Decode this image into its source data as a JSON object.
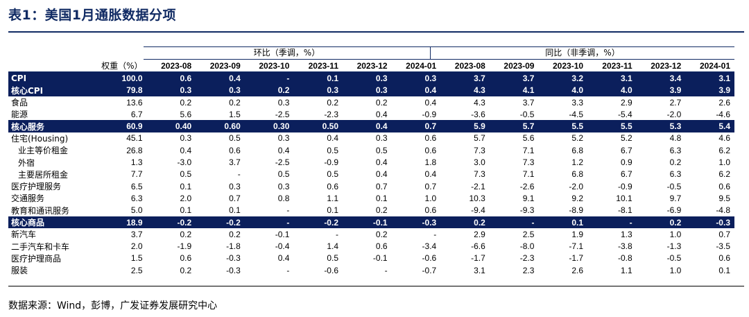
{
  "title": "表1：美国1月通胀数据分项",
  "header": {
    "weight_label": "权重（%）",
    "mom_group": "环比（季调，%）",
    "yoy_group": "同比（非季调，%）",
    "months": [
      "2023-08",
      "2023-09",
      "2023-10",
      "2023-11",
      "2023-12",
      "2024-01",
      "2023-08",
      "2023-09",
      "2023-10",
      "2023-11",
      "2023-12",
      "2024-01"
    ]
  },
  "rows": [
    {
      "label": "CPI",
      "weight": "100.0",
      "highlight": true,
      "mom": [
        "0.6",
        "0.4",
        "-",
        "0.1",
        "0.3",
        "0.3"
      ],
      "yoy": [
        "3.7",
        "3.7",
        "3.2",
        "3.1",
        "3.4",
        "3.1"
      ]
    },
    {
      "label": "核心CPI",
      "weight": "79.8",
      "highlight": true,
      "mom": [
        "0.3",
        "0.3",
        "0.2",
        "0.3",
        "0.3",
        "0.4"
      ],
      "yoy": [
        "4.3",
        "4.1",
        "4.0",
        "4.0",
        "3.9",
        "3.9"
      ]
    },
    {
      "label": "食品",
      "weight": "13.6",
      "highlight": false,
      "mom": [
        "0.2",
        "0.2",
        "0.3",
        "0.2",
        "0.2",
        "0.4"
      ],
      "yoy": [
        "4.3",
        "3.7",
        "3.3",
        "2.9",
        "2.7",
        "2.6"
      ]
    },
    {
      "label": "能源",
      "weight": "6.7",
      "highlight": false,
      "mom": [
        "5.6",
        "1.5",
        "-2.5",
        "-2.3",
        "0.4",
        "-0.9"
      ],
      "yoy": [
        "-3.6",
        "-0.5",
        "-4.5",
        "-5.4",
        "-2.0",
        "-4.6"
      ]
    },
    {
      "label": "核心服务",
      "weight": "60.9",
      "highlight": true,
      "mom": [
        "0.40",
        "0.60",
        "0.30",
        "0.50",
        "0.4",
        "0.7"
      ],
      "yoy": [
        "5.9",
        "5.7",
        "5.5",
        "5.5",
        "5.3",
        "5.4"
      ]
    },
    {
      "label": "住宅(Housing)",
      "weight": "45.1",
      "highlight": false,
      "mom": [
        "0.3",
        "0.5",
        "0.3",
        "0.4",
        "0.3",
        "0.6"
      ],
      "yoy": [
        "5.7",
        "5.6",
        "5.2",
        "5.2",
        "4.8",
        "4.6"
      ]
    },
    {
      "label": "  业主等价租金",
      "weight": "26.8",
      "highlight": false,
      "mom": [
        "0.4",
        "0.6",
        "0.4",
        "0.5",
        "0.5",
        "0.6"
      ],
      "yoy": [
        "7.3",
        "7.1",
        "6.8",
        "6.7",
        "6.3",
        "6.2"
      ]
    },
    {
      "label": "  外宿",
      "weight": "1.3",
      "highlight": false,
      "mom": [
        "-3.0",
        "3.7",
        "-2.5",
        "-0.9",
        "0.4",
        "1.8"
      ],
      "yoy": [
        "3.0",
        "7.3",
        "1.2",
        "0.9",
        "0.2",
        "1.0"
      ]
    },
    {
      "label": "  主要居所租金",
      "weight": "7.7",
      "highlight": false,
      "mom": [
        "0.5",
        "-",
        "0.5",
        "0.5",
        "0.4",
        "0.4"
      ],
      "yoy": [
        "7.3",
        "7.1",
        "6.8",
        "6.7",
        "6.3",
        "6.2"
      ]
    },
    {
      "label": "医疗护理服务",
      "weight": "6.5",
      "highlight": false,
      "mom": [
        "0.1",
        "0.3",
        "0.3",
        "0.6",
        "0.7",
        "0.7"
      ],
      "yoy": [
        "-2.1",
        "-2.6",
        "-2.0",
        "-0.9",
        "-0.5",
        "0.6"
      ]
    },
    {
      "label": "交通服务",
      "weight": "6.3",
      "highlight": false,
      "mom": [
        "2.0",
        "0.7",
        "0.8",
        "1.1",
        "0.1",
        "1.0"
      ],
      "yoy": [
        "10.3",
        "9.1",
        "9.2",
        "10.1",
        "9.7",
        "9.5"
      ]
    },
    {
      "label": "教育和通讯服务",
      "weight": "5.0",
      "highlight": false,
      "mom": [
        "0.1",
        "0.1",
        "-",
        "0.1",
        "0.2",
        "0.6"
      ],
      "yoy": [
        "-9.4",
        "-9.3",
        "-8.9",
        "-8.1",
        "-6.9",
        "-4.8"
      ]
    },
    {
      "label": "核心商品",
      "weight": "18.9",
      "highlight": true,
      "mom": [
        "-0.2",
        "-0.2",
        "-",
        "-0.2",
        "-0.1",
        "-0.3"
      ],
      "yoy": [
        "0.2",
        "-",
        "0.1",
        "-",
        "0.2",
        "-0.3"
      ]
    },
    {
      "label": "新汽车",
      "weight": "3.7",
      "highlight": false,
      "mom": [
        "0.2",
        "0.2",
        "-0.1",
        "-",
        "0.2",
        "-"
      ],
      "yoy": [
        "2.9",
        "2.5",
        "1.9",
        "1.3",
        "1.0",
        "0.7"
      ]
    },
    {
      "label": "二手汽车和卡车",
      "weight": "2.0",
      "highlight": false,
      "mom": [
        "-1.9",
        "-1.8",
        "-0.4",
        "1.4",
        "0.6",
        "-3.4"
      ],
      "yoy": [
        "-6.6",
        "-8.0",
        "-7.1",
        "-3.8",
        "-1.3",
        "-3.5"
      ]
    },
    {
      "label": "医疗护理商品",
      "weight": "1.5",
      "highlight": false,
      "mom": [
        "0.6",
        "-0.3",
        "0.4",
        "0.5",
        "-0.1",
        "-0.6"
      ],
      "yoy": [
        "-1.7",
        "-2.3",
        "-1.7",
        "-0.8",
        "-0.5",
        "0.6"
      ]
    },
    {
      "label": "服装",
      "weight": "2.5",
      "highlight": false,
      "mom": [
        "0.2",
        "-0.3",
        "-",
        "-0.6",
        "-",
        "-0.7"
      ],
      "yoy": [
        "3.1",
        "2.3",
        "2.6",
        "1.1",
        "1.0",
        "0.1"
      ]
    }
  ],
  "source": "数据来源：Wind，彭博，广发证券发展研究中心",
  "colors": {
    "title": "#102a63",
    "highlight_bg": "#0b1f5c",
    "highlight_text": "#ffffff"
  }
}
